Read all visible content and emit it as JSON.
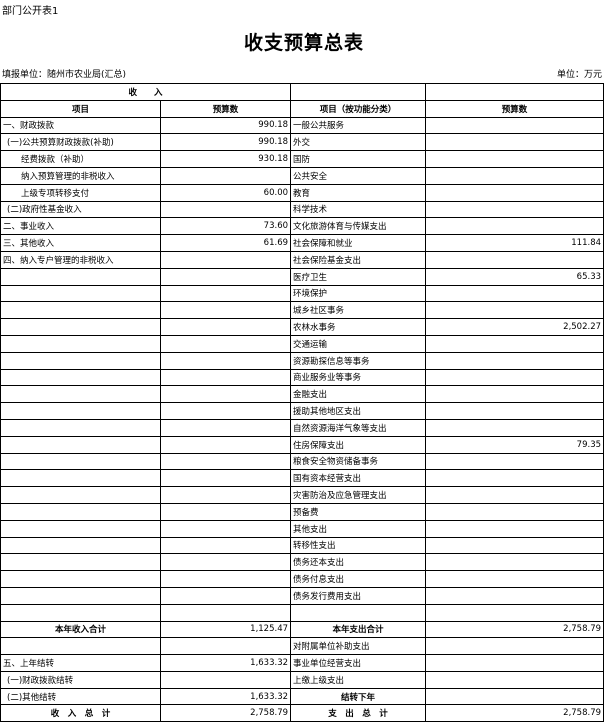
{
  "tag": "部门公开表1",
  "title": "收支预算总表",
  "unit_org": "填报单位：随州市农业局(汇总)",
  "unit": "单位：万元",
  "header": {
    "income": "收　　入",
    "item": "项目",
    "amount": "预算数",
    "exp_item": "项目（按功能分类）",
    "exp_amount": "预算数"
  },
  "income_rows": [
    {
      "label": "一、财政拨款",
      "value": "990.18",
      "indent": 0
    },
    {
      "label": "(一)公共预算财政拨款(补助)",
      "value": "990.18",
      "indent": 1
    },
    {
      "label": "经费拨款（补助）",
      "value": "930.18",
      "indent": 2
    },
    {
      "label": "纳入预算管理的非税收入",
      "value": "",
      "indent": 2
    },
    {
      "label": "上级专项转移支付",
      "value": "60.00",
      "indent": 2
    },
    {
      "label": "(二)政府性基金收入",
      "value": "",
      "indent": 1
    },
    {
      "label": "二、事业收入",
      "value": "73.60",
      "indent": 0
    },
    {
      "label": "三、其他收入",
      "value": "61.69",
      "indent": 0
    },
    {
      "label": "四、纳入专户管理的非税收入",
      "value": "",
      "indent": 0
    }
  ],
  "expense_rows": [
    {
      "label": "一般公共服务",
      "value": ""
    },
    {
      "label": "外交",
      "value": ""
    },
    {
      "label": "国防",
      "value": ""
    },
    {
      "label": "公共安全",
      "value": ""
    },
    {
      "label": "教育",
      "value": ""
    },
    {
      "label": "科学技术",
      "value": ""
    },
    {
      "label": "文化旅游体育与传媒支出",
      "value": ""
    },
    {
      "label": "社会保障和就业",
      "value": "111.84"
    },
    {
      "label": "社会保险基金支出",
      "value": ""
    },
    {
      "label": "医疗卫生",
      "value": "65.33"
    },
    {
      "label": "环境保护",
      "value": ""
    },
    {
      "label": "城乡社区事务",
      "value": ""
    },
    {
      "label": "农林水事务",
      "value": "2,502.27"
    },
    {
      "label": "交通运输",
      "value": ""
    },
    {
      "label": "资源勘探信息等事务",
      "value": ""
    },
    {
      "label": "商业服务业等事务",
      "value": ""
    },
    {
      "label": "金融支出",
      "value": ""
    },
    {
      "label": "援助其他地区支出",
      "value": ""
    },
    {
      "label": "自然资源海洋气象等支出",
      "value": ""
    },
    {
      "label": "住房保障支出",
      "value": "79.35"
    },
    {
      "label": "粮食安全物资储备事务",
      "value": ""
    },
    {
      "label": "国有资本经营支出",
      "value": ""
    },
    {
      "label": "灾害防治及应急管理支出",
      "value": ""
    },
    {
      "label": "预备费",
      "value": ""
    },
    {
      "label": "其他支出",
      "value": ""
    },
    {
      "label": "转移性支出",
      "value": ""
    },
    {
      "label": "债务还本支出",
      "value": ""
    },
    {
      "label": "债务付息支出",
      "value": ""
    },
    {
      "label": "债务发行费用支出",
      "value": ""
    }
  ],
  "bottom_rows": [
    {
      "l": "本年收入合计",
      "lv": "1,125.47",
      "r": "本年支出合计",
      "rv": "2,758.79",
      "lb": true,
      "rb": true
    },
    {
      "l": "",
      "lv": "",
      "r": "对附属单位补助支出",
      "rv": ""
    },
    {
      "l": "五、上年结转",
      "lv": "1,633.32",
      "r": "事业单位经营支出",
      "rv": ""
    },
    {
      "l": "(一)财政拨款结转",
      "lv": "",
      "r": "上缴上级支出",
      "rv": "",
      "li": 1
    },
    {
      "l": "(二)其他结转",
      "lv": "1,633.32",
      "r": "结转下年",
      "rv": "",
      "li": 1,
      "rb": true
    },
    {
      "l": "收　入　总　计",
      "lv": "2,758.79",
      "r": "支　出　总　计",
      "rv": "2,758.79",
      "lb": true,
      "rb": true
    }
  ]
}
